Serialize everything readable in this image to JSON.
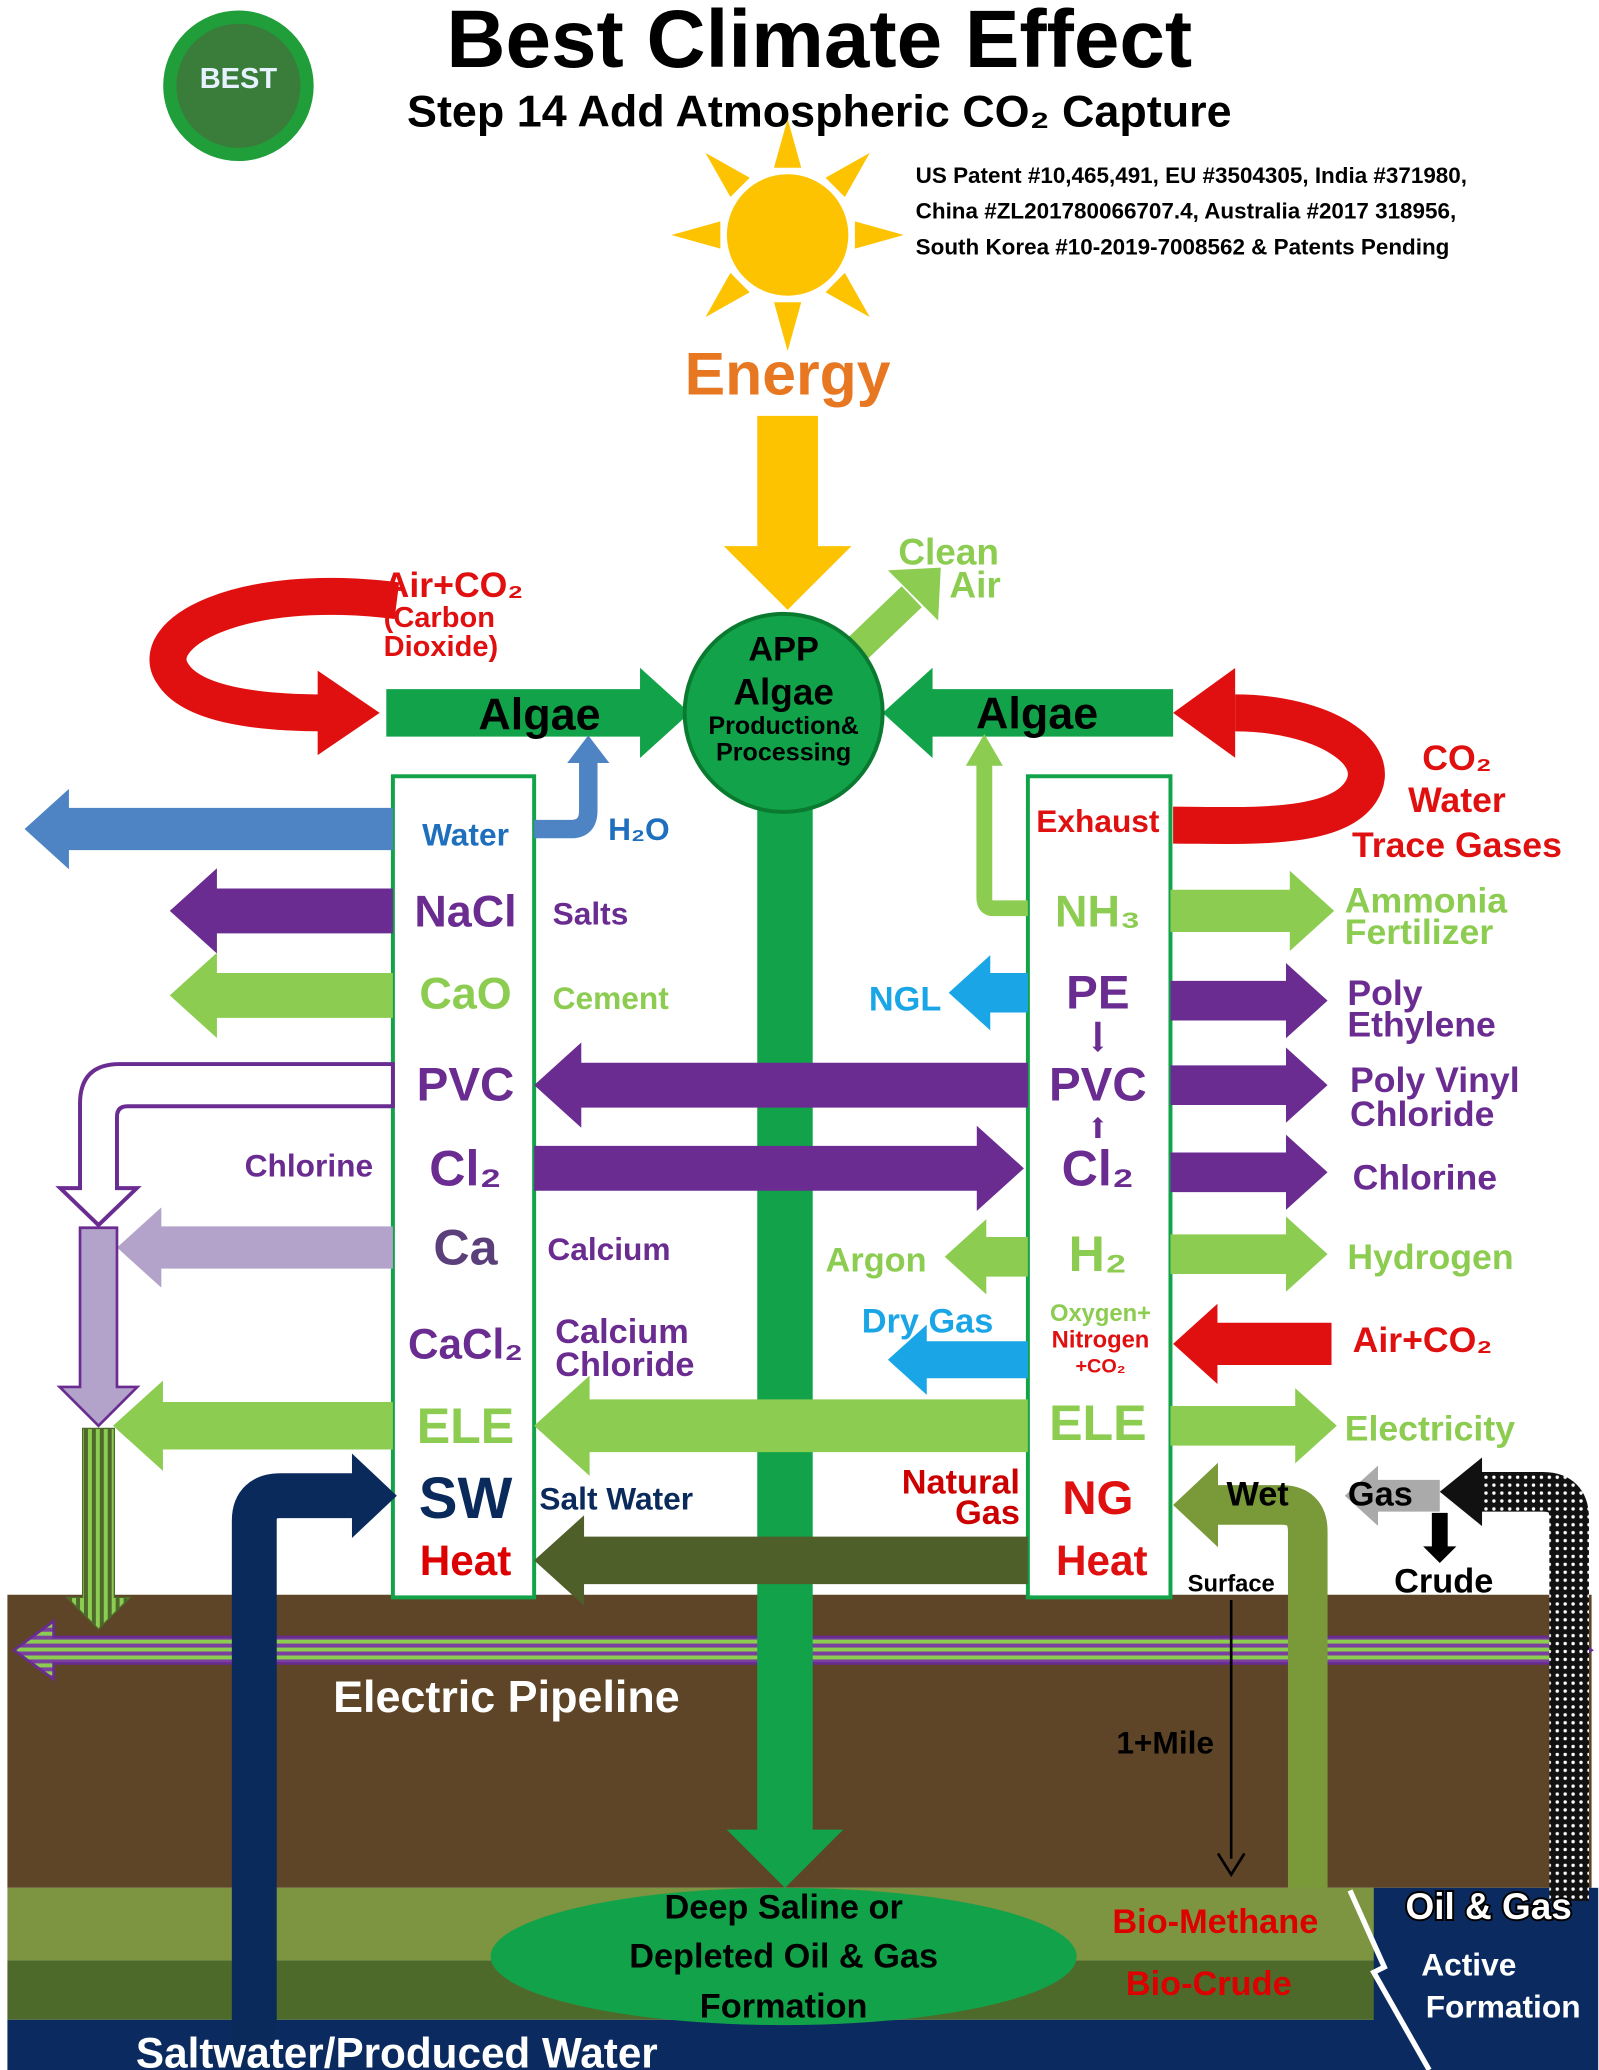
{
  "header": {
    "logo": "BEST",
    "title": "Best Climate Effect",
    "subtitle": "Step 14 Add Atmospheric CO₂ Capture",
    "patents": [
      "US Patent #10,465,491, EU #3504305, India #371980,",
      "China #ZL201780066707.4, Australia #2017 318956,",
      "South Korea #10-2019-7008562 & Patents Pending"
    ]
  },
  "top": {
    "energy": "Energy",
    "clean_air": [
      "Clean",
      "Air"
    ],
    "air_co2": [
      "Air+CO₂",
      "(Carbon",
      "Dioxide)"
    ],
    "algae_left": "Algae",
    "algae_right": "Algae",
    "app": [
      "APP",
      "Algae",
      "Production&",
      "Processing"
    ],
    "exhaust_gases": [
      "CO₂",
      "Water",
      "Trace Gases"
    ]
  },
  "left_column": [
    "Water",
    "NaCl",
    "CaO",
    "PVC",
    "Cl₂",
    "Ca",
    "CaCl₂",
    "ELE",
    "SW",
    "Heat"
  ],
  "left_labels": {
    "h2o": "H₂O",
    "salts": "Salts",
    "cement": "Cement",
    "chlorine": "Chlorine",
    "calcium": "Calcium",
    "calcium_chloride": [
      "Calcium",
      "Chloride"
    ],
    "salt_water": "Salt Water"
  },
  "right_column": {
    "exhaust": "Exhaust",
    "nh3": "NH₃",
    "pe": "PE",
    "pvc": "PVC",
    "cl2": "Cl₂",
    "h2": "H₂",
    "air_mix": [
      "Oxygen+",
      "Nitrogen",
      "+CO₂"
    ],
    "ele": "ELE",
    "ng": "NG",
    "heat": "Heat"
  },
  "right_outputs": {
    "ammonia": [
      "Ammonia",
      "Fertilizer"
    ],
    "ethylene": [
      "Poly",
      "Ethylene"
    ],
    "vinyl": [
      "Poly Vinyl",
      "Chloride"
    ],
    "chlorine": "Chlorine",
    "hydrogen": "Hydrogen",
    "air_co2": "Air+CO₂",
    "electricity": "Electricity"
  },
  "right_inputs": {
    "ngl": "NGL",
    "argon": "Argon",
    "dry_gas": "Dry Gas",
    "natural_gas": [
      "Natural",
      "Gas"
    ]
  },
  "wells": {
    "wet": "Wet",
    "gas": "Gas",
    "crude": "Crude",
    "surface": "Surface",
    "depth": "1+Mile"
  },
  "ground": {
    "pipeline": "Electric Pipeline",
    "formation": [
      "Deep Saline or",
      "Depleted Oil & Gas",
      "Formation"
    ],
    "bio_methane": "Bio-Methane",
    "bio_crude": "Bio-Crude",
    "oil_gas": "Oil & Gas",
    "active": [
      "Active",
      "Formation"
    ],
    "saltwater": "Saltwater/Produced Water"
  }
}
